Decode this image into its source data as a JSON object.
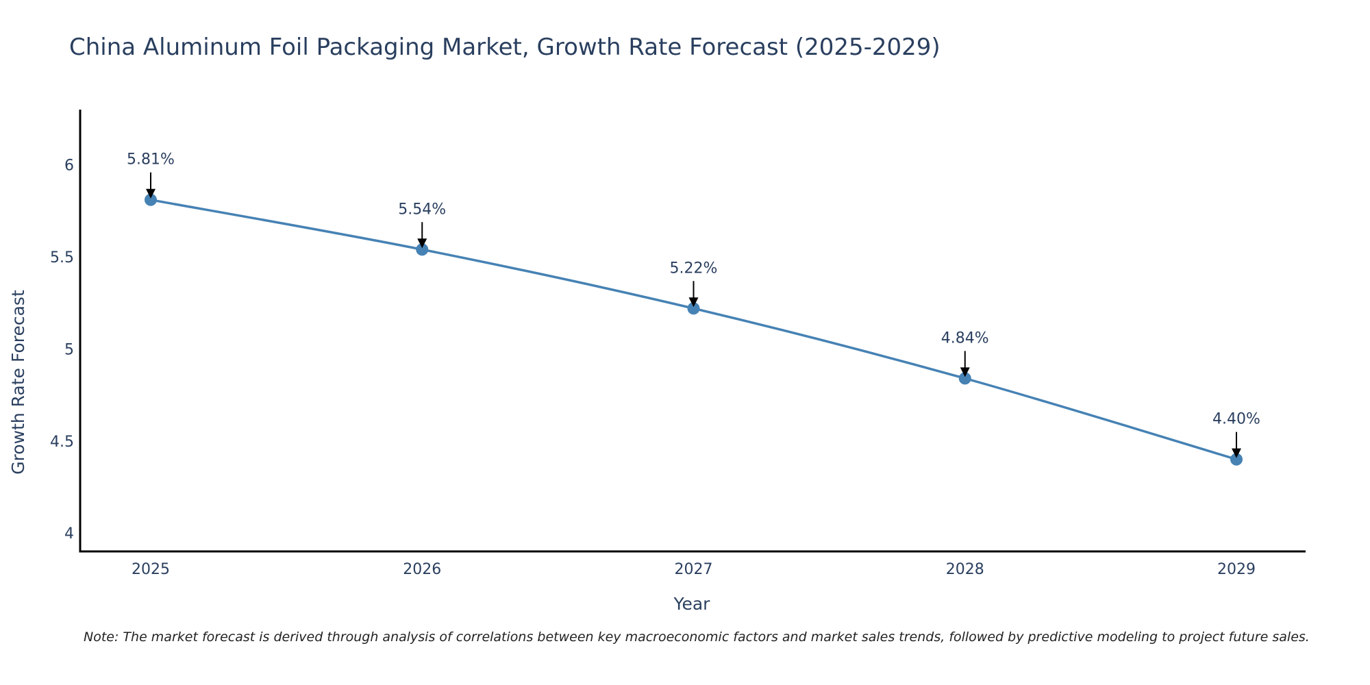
{
  "chart_data": {
    "type": "line",
    "title": "China Aluminum Foil Packaging Market, Growth Rate Forecast (2025-2029)",
    "xlabel": "Year",
    "ylabel": "Growth Rate Forecast",
    "categories": [
      "2025",
      "2026",
      "2027",
      "2028",
      "2029"
    ],
    "series": [
      {
        "name": "Growth Rate Forecast",
        "values": [
          5.81,
          5.54,
          5.22,
          4.84,
          4.4
        ],
        "labels": [
          "5.81%",
          "5.54%",
          "5.22%",
          "4.84%",
          "4.40%"
        ]
      }
    ],
    "ylim": [
      3.9,
      6.3
    ],
    "yticks": [
      4,
      4.5,
      5,
      5.5,
      6
    ],
    "ytick_labels": [
      "4",
      "4.5",
      "5",
      "5.5",
      "6"
    ],
    "grid": false,
    "colors": {
      "line": "#4682b4",
      "marker": "#4682b4",
      "text": "#2a3f5f",
      "axis": "#000000",
      "arrow": "#000000"
    }
  },
  "note": "Note: The market forecast is derived through analysis of correlations between key macroeconomic factors and market sales trends, followed by predictive modeling to project future sales."
}
